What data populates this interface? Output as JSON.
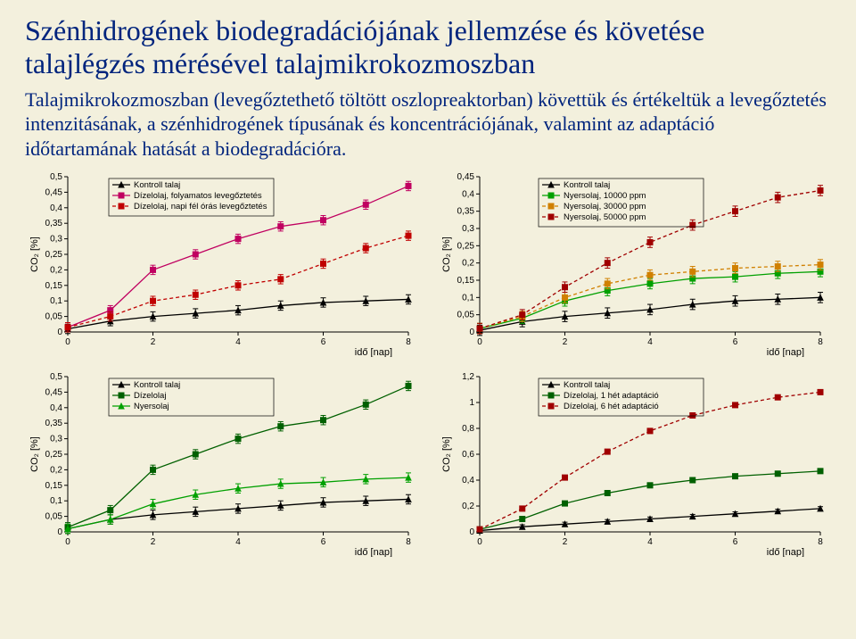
{
  "title": "Szénhidrogének biodegradációjának jellemzése és követése talajlégzés mérésével talajmikrokozmoszban",
  "body": "Talajmikrokozmoszban (levegőztethető töltött oszlopreaktorban) követtük és értékeltük a levegőztetés intenzitásának, a szénhidrogének típusának és koncentrációjának, valamint az adaptáció időtartamának hatását a biodegradációra.",
  "common": {
    "xlabel": "idő [nap]",
    "ylabel_html": "CO₂ [%]",
    "x": [
      0,
      1,
      2,
      3,
      4,
      5,
      6,
      7,
      8
    ],
    "xlim": [
      0,
      8
    ],
    "xtick_step": 2,
    "tick_fontsize": 10,
    "label_fontsize": 11,
    "legend_fontsize": 9.5,
    "error_bar_half": 0.015,
    "background": "#f3f0dd"
  },
  "charts": [
    {
      "id": "chart-aeration",
      "ylim": [
        0,
        0.5
      ],
      "ytick_step": 0.05,
      "decimal_comma": true,
      "legend_pos": "top-left",
      "series": [
        {
          "name": "Kontroll talaj",
          "color": "#000000",
          "marker": "triangle",
          "dash": false,
          "y": [
            0.01,
            0.035,
            0.05,
            0.06,
            0.07,
            0.085,
            0.095,
            0.1,
            0.105
          ]
        },
        {
          "name": "Dízelolaj, folyamatos levegőztetés",
          "color": "#c00060",
          "marker": "square",
          "dash": false,
          "y": [
            0.015,
            0.07,
            0.2,
            0.25,
            0.3,
            0.34,
            0.36,
            0.41,
            0.47
          ]
        },
        {
          "name": "Dízelolaj, napi fél órás levegőztetés",
          "color": "#c00000",
          "marker": "square",
          "dash": true,
          "y": [
            0.015,
            0.05,
            0.1,
            0.12,
            0.15,
            0.17,
            0.22,
            0.27,
            0.31
          ]
        }
      ]
    },
    {
      "id": "chart-concentration",
      "ylim": [
        0,
        0.45
      ],
      "ytick_step": 0.05,
      "decimal_comma": true,
      "legend_pos": "top-left-offset",
      "series": [
        {
          "name": "Kontroll talaj",
          "color": "#000000",
          "marker": "triangle",
          "dash": false,
          "y": [
            0.005,
            0.03,
            0.045,
            0.055,
            0.065,
            0.08,
            0.09,
            0.095,
            0.1
          ]
        },
        {
          "name": "Nyersolaj, 10000 ppm",
          "color": "#00a000",
          "marker": "square",
          "dash": false,
          "y": [
            0.01,
            0.04,
            0.09,
            0.12,
            0.14,
            0.155,
            0.16,
            0.17,
            0.175
          ]
        },
        {
          "name": "Nyersolaj, 30000 ppm",
          "color": "#d08000",
          "marker": "square",
          "dash": true,
          "y": [
            0.01,
            0.045,
            0.1,
            0.14,
            0.165,
            0.175,
            0.185,
            0.19,
            0.195
          ]
        },
        {
          "name": "Nyersolaj, 50000 ppm",
          "color": "#a00000",
          "marker": "square",
          "dash": true,
          "y": [
            0.01,
            0.05,
            0.13,
            0.2,
            0.26,
            0.31,
            0.35,
            0.39,
            0.41
          ]
        }
      ]
    },
    {
      "id": "chart-oiltype",
      "ylim": [
        0,
        0.5
      ],
      "ytick_step": 0.05,
      "decimal_comma": true,
      "legend_pos": "top-left",
      "series": [
        {
          "name": "Kontroll talaj",
          "color": "#000000",
          "marker": "triangle",
          "dash": false,
          "y": [
            0.01,
            0.04,
            0.055,
            0.065,
            0.075,
            0.085,
            0.095,
            0.1,
            0.105
          ]
        },
        {
          "name": "Dízelolaj",
          "color": "#006000",
          "marker": "square",
          "dash": false,
          "y": [
            0.015,
            0.07,
            0.2,
            0.25,
            0.3,
            0.34,
            0.36,
            0.41,
            0.47
          ]
        },
        {
          "name": "Nyersolaj",
          "color": "#00a000",
          "marker": "triangle",
          "dash": false,
          "y": [
            0.01,
            0.04,
            0.09,
            0.12,
            0.14,
            0.155,
            0.16,
            0.17,
            0.175
          ]
        }
      ]
    },
    {
      "id": "chart-adaptation",
      "ylim": [
        0,
        1.2
      ],
      "ytick_step": 0.2,
      "decimal_comma": true,
      "legend_pos": "top-left-offset",
      "series": [
        {
          "name": "Kontroll talaj",
          "color": "#000000",
          "marker": "triangle",
          "dash": false,
          "y": [
            0.01,
            0.04,
            0.06,
            0.08,
            0.1,
            0.12,
            0.14,
            0.16,
            0.18
          ]
        },
        {
          "name": "Dízelolaj, 1 hét adaptáció",
          "color": "#006000",
          "marker": "square",
          "dash": false,
          "y": [
            0.02,
            0.1,
            0.22,
            0.3,
            0.36,
            0.4,
            0.43,
            0.45,
            0.47
          ]
        },
        {
          "name": "Dízelolaj, 6 hét adaptáció",
          "color": "#a00000",
          "marker": "square",
          "dash": true,
          "y": [
            0.02,
            0.18,
            0.42,
            0.62,
            0.78,
            0.9,
            0.98,
            1.04,
            1.08
          ]
        }
      ]
    }
  ]
}
